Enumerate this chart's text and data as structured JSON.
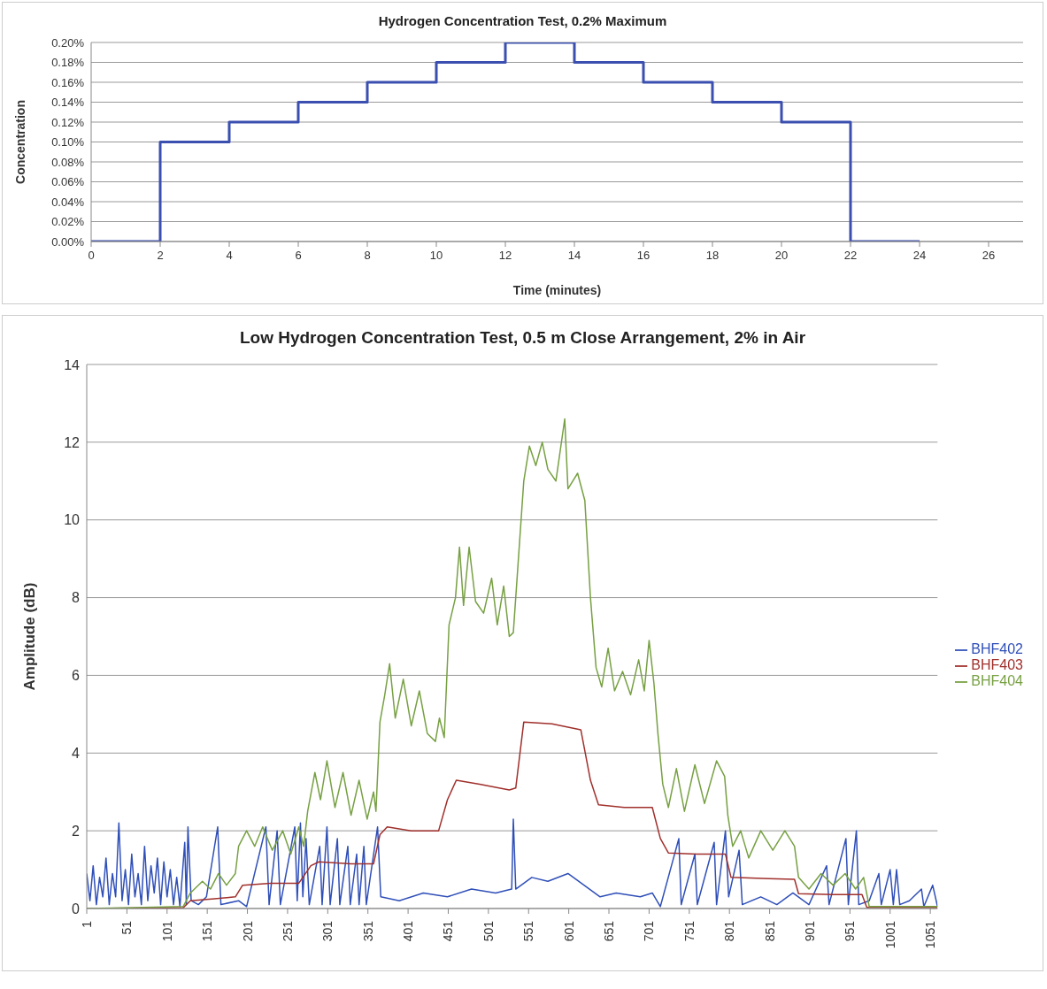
{
  "chart_data": [
    {
      "type": "step",
      "title": "Hydrogen Concentration Test, 0.2% Maximum",
      "xlabel": "Time (minutes)",
      "ylabel": "Concentration",
      "x": [
        0,
        2,
        4,
        6,
        8,
        10,
        12,
        14,
        16,
        18,
        20,
        22,
        24
      ],
      "series": [
        {
          "color": "#3a4fb0",
          "values": [
            0,
            0.1,
            0.12,
            0.14,
            0.16,
            0.18,
            0.2,
            0.18,
            0.16,
            0.14,
            0.12,
            0,
            0
          ]
        }
      ],
      "xlim": [
        0,
        27
      ],
      "xticks": [
        0,
        2,
        4,
        6,
        8,
        10,
        12,
        14,
        16,
        18,
        20,
        22,
        24,
        26
      ],
      "ylim": [
        0,
        0.2
      ],
      "yticks": [
        {
          "value": 0,
          "label": "0.00%"
        },
        {
          "value": 0.02,
          "label": "0.02%"
        },
        {
          "value": 0.04,
          "label": "0.04%"
        },
        {
          "value": 0.06,
          "label": "0.06%"
        },
        {
          "value": 0.08,
          "label": "0.08%"
        },
        {
          "value": 0.1,
          "label": "0.10%"
        },
        {
          "value": 0.12,
          "label": "0.12%"
        },
        {
          "value": 0.14,
          "label": "0.14%"
        },
        {
          "value": 0.16,
          "label": "0.16%"
        },
        {
          "value": 0.18,
          "label": "0.18%"
        },
        {
          "value": 0.2,
          "label": "0.20%"
        }
      ],
      "grid": "y",
      "marker": "none"
    },
    {
      "type": "line",
      "title": "Low Hydrogen Concentration Test, 0.5 m Close Arrangement, 2% in Air",
      "ylabel": "Amplitude (dB)",
      "series": [
        {
          "name": "BHF402",
          "color": "#2f4fb8",
          "x": [
            1,
            5,
            9,
            13,
            17,
            21,
            25,
            29,
            33,
            37,
            41,
            45,
            49,
            53,
            57,
            61,
            65,
            69,
            73,
            77,
            81,
            85,
            89,
            93,
            97,
            101,
            105,
            109,
            113,
            117,
            123,
            125,
            127,
            131,
            140,
            150,
            164,
            168,
            190,
            200,
            224,
            228,
            238,
            242,
            260,
            263,
            267,
            270,
            274,
            278,
            291,
            294,
            300,
            304,
            313,
            316,
            326,
            329,
            337,
            340,
            346,
            349,
            363,
            367,
            390,
            420,
            450,
            480,
            510,
            530,
            532,
            535,
            555,
            575,
            600,
            620,
            640,
            660,
            690,
            705,
            715,
            738,
            741,
            758,
            761,
            782,
            785,
            796,
            800,
            813,
            817,
            840,
            860,
            880,
            900,
            922,
            925,
            946,
            949,
            959,
            962,
            975,
            987,
            990,
            1001,
            1005,
            1009,
            1013,
            1025,
            1040,
            1043,
            1054,
            1060
          ],
          "values": [
            0.9,
            0.2,
            1.1,
            0.1,
            0.8,
            0.3,
            1.3,
            0.1,
            0.9,
            0.3,
            2.2,
            0.2,
            1.0,
            0.1,
            1.4,
            0.3,
            0.9,
            0.1,
            1.6,
            0.2,
            1.1,
            0.4,
            1.3,
            0.1,
            1.2,
            0.3,
            1.0,
            0.1,
            0.8,
            0.05,
            1.7,
            0.1,
            2.1,
            0.2,
            0.1,
            0.3,
            2.1,
            0.1,
            0.2,
            0.05,
            2.1,
            0.1,
            2.0,
            0.1,
            2.1,
            0.2,
            2.2,
            0.3,
            1.8,
            0.1,
            1.6,
            0.1,
            2.1,
            0.1,
            1.8,
            0.1,
            1.6,
            0.1,
            1.4,
            0.1,
            1.6,
            0.1,
            2.1,
            0.3,
            0.2,
            0.4,
            0.3,
            0.5,
            0.4,
            0.5,
            2.3,
            0.5,
            0.8,
            0.7,
            0.9,
            0.6,
            0.3,
            0.4,
            0.3,
            0.4,
            0.05,
            1.8,
            0.1,
            1.4,
            0.1,
            1.7,
            0.1,
            2.0,
            0.3,
            1.5,
            0.1,
            0.3,
            0.1,
            0.4,
            0.1,
            1.1,
            0.1,
            1.8,
            0.1,
            2.0,
            0.1,
            0.2,
            0.9,
            0.1,
            1.0,
            0.1,
            1.0,
            0.1,
            0.2,
            0.5,
            0.05,
            0.6,
            0.05
          ]
        },
        {
          "name": "BHF403",
          "color": "#a0302c",
          "x": [
            1,
            121,
            130,
            160,
            186,
            195,
            230,
            265,
            280,
            290,
            330,
            358,
            366,
            375,
            405,
            439,
            450,
            461,
            490,
            527,
            535,
            545,
            580,
            616,
            628,
            638,
            670,
            705,
            715,
            725,
            760,
            796,
            803,
            850,
            882,
            887,
            930,
            966,
            972,
            1060
          ],
          "values": [
            0,
            0.02,
            0.2,
            0.25,
            0.3,
            0.6,
            0.65,
            0.65,
            1.1,
            1.2,
            1.15,
            1.15,
            1.9,
            2.1,
            2.0,
            2.0,
            2.8,
            3.3,
            3.2,
            3.05,
            3.1,
            4.8,
            4.75,
            4.6,
            3.3,
            2.67,
            2.6,
            2.6,
            1.8,
            1.43,
            1.4,
            1.4,
            0.8,
            0.77,
            0.75,
            0.38,
            0.36,
            0.36,
            0.03,
            0.03
          ]
        },
        {
          "name": "BHF404",
          "color": "#77a043",
          "x": [
            1,
            60,
            121,
            130,
            145,
            155,
            165,
            175,
            186,
            190,
            200,
            210,
            220,
            232,
            245,
            255,
            265,
            271,
            276,
            285,
            292,
            300,
            310,
            320,
            330,
            340,
            350,
            358,
            361,
            366,
            372,
            378,
            385,
            395,
            405,
            415,
            425,
            435,
            440,
            446,
            452,
            460,
            465,
            470,
            477,
            485,
            495,
            505,
            512,
            520,
            527,
            532,
            545,
            552,
            560,
            568,
            575,
            585,
            596,
            600,
            612,
            621,
            628,
            635,
            642,
            650,
            658,
            668,
            678,
            688,
            695,
            701,
            707,
            712,
            718,
            725,
            735,
            745,
            758,
            770,
            785,
            795,
            799,
            805,
            815,
            825,
            840,
            855,
            870,
            882,
            887,
            900,
            915,
            930,
            945,
            958,
            968,
            975,
            1060
          ],
          "values": [
            0,
            0.02,
            0.05,
            0.4,
            0.7,
            0.5,
            0.9,
            0.6,
            0.9,
            1.6,
            2.0,
            1.6,
            2.1,
            1.5,
            2.0,
            1.4,
            2.1,
            1.6,
            2.5,
            3.5,
            2.8,
            3.8,
            2.6,
            3.5,
            2.4,
            3.3,
            2.3,
            3.0,
            2.5,
            4.8,
            5.5,
            6.3,
            4.9,
            5.9,
            4.7,
            5.6,
            4.5,
            4.3,
            4.9,
            4.4,
            7.3,
            8.0,
            9.3,
            7.8,
            9.3,
            7.9,
            7.6,
            8.5,
            7.3,
            8.3,
            7.0,
            7.1,
            11.0,
            11.9,
            11.4,
            12.0,
            11.3,
            11.0,
            12.6,
            10.8,
            11.2,
            10.5,
            8.0,
            6.2,
            5.7,
            6.7,
            5.6,
            6.1,
            5.5,
            6.4,
            5.6,
            6.9,
            5.8,
            4.5,
            3.2,
            2.6,
            3.6,
            2.5,
            3.7,
            2.7,
            3.8,
            3.4,
            2.4,
            1.6,
            2.0,
            1.3,
            2.0,
            1.5,
            2.0,
            1.6,
            0.8,
            0.5,
            0.9,
            0.6,
            0.9,
            0.5,
            0.8,
            0.05,
            0.05
          ]
        }
      ],
      "xlim": [
        1,
        1060
      ],
      "xticks": [
        1,
        51,
        101,
        151,
        201,
        251,
        301,
        351,
        401,
        451,
        501,
        551,
        601,
        651,
        701,
        751,
        801,
        851,
        901,
        951,
        1001,
        1051
      ],
      "ylim": [
        0,
        14
      ],
      "yticks": [
        0,
        2,
        4,
        6,
        8,
        10,
        12,
        14
      ],
      "grid": "y",
      "legend": "right",
      "marker": "none"
    }
  ]
}
